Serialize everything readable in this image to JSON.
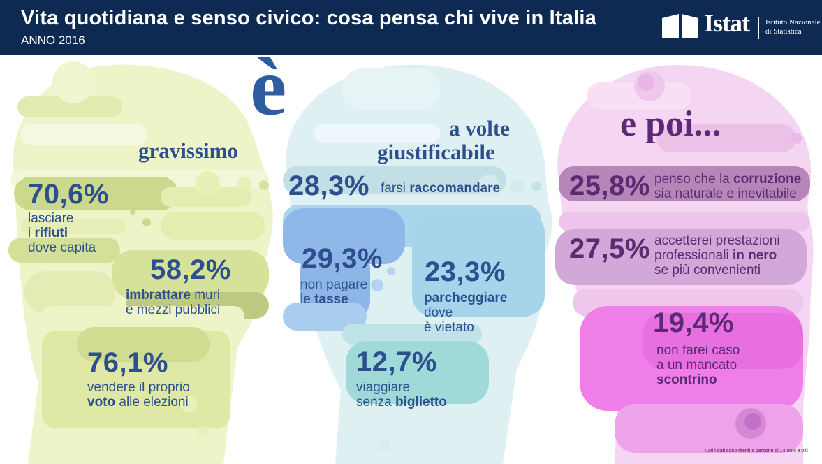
{
  "header": {
    "title": "Vita quotidiana e senso civico: cosa pensa chi vive in Italia",
    "subtitle": "ANNO 2016",
    "logo": {
      "word": "Istat",
      "line1": "Istituto Nazionale",
      "line2": "di Statistica"
    }
  },
  "big_letter": "è",
  "columns": [
    {
      "heading": "gravissimo",
      "items": [
        {
          "pct": "70,6%",
          "lines": [
            [
              {
                "t": "lasciare",
                "b": false
              }
            ],
            [
              {
                "t": "i ",
                "b": false
              },
              {
                "t": "rifiuti",
                "b": true
              }
            ],
            [
              {
                "t": "dove capita",
                "b": false
              }
            ]
          ]
        },
        {
          "pct": "58,2%",
          "lines": [
            [
              {
                "t": "imbrattare",
                "b": true
              },
              {
                "t": " muri",
                "b": false
              }
            ],
            [
              {
                "t": "e mezzi pubblici",
                "b": false
              }
            ]
          ]
        },
        {
          "pct": "76,1%",
          "lines": [
            [
              {
                "t": "vendere il proprio",
                "b": false
              }
            ],
            [
              {
                "t": "voto",
                "b": true
              },
              {
                "t": " alle elezioni",
                "b": false
              }
            ]
          ]
        }
      ]
    },
    {
      "heading_line1": "a volte",
      "heading_line2": "giustificabile",
      "items": [
        {
          "pct": "28,3%",
          "lines": [
            [
              {
                "t": "farsi ",
                "b": false
              },
              {
                "t": "raccomandare",
                "b": true
              }
            ]
          ]
        },
        {
          "pct": "29,3%",
          "lines": [
            [
              {
                "t": "non pagare",
                "b": false
              }
            ],
            [
              {
                "t": "le ",
                "b": false
              },
              {
                "t": "tasse",
                "b": true
              }
            ]
          ]
        },
        {
          "pct": "23,3%",
          "lines": [
            [
              {
                "t": "parcheggiare",
                "b": true
              }
            ],
            [
              {
                "t": "dove",
                "b": false
              }
            ],
            [
              {
                "t": "è vietato",
                "b": false
              }
            ]
          ]
        },
        {
          "pct": "12,7%",
          "lines": [
            [
              {
                "t": "viaggiare",
                "b": false
              }
            ],
            [
              {
                "t": "senza ",
                "b": false
              },
              {
                "t": "biglietto",
                "b": true
              }
            ]
          ]
        }
      ]
    },
    {
      "heading": "e poi...",
      "items": [
        {
          "pct": "25,8%",
          "lines": [
            [
              {
                "t": "penso che la ",
                "b": false
              },
              {
                "t": "corruzione",
                "b": true
              }
            ],
            [
              {
                "t": "sia naturale e inevitabile",
                "b": false
              }
            ]
          ]
        },
        {
          "pct": "27,5%",
          "lines": [
            [
              {
                "t": "accetterei prestazioni",
                "b": false
              }
            ],
            [
              {
                "t": "professionali ",
                "b": false
              },
              {
                "t": "in nero",
                "b": true
              }
            ],
            [
              {
                "t": "se più convenienti",
                "b": false
              }
            ]
          ]
        },
        {
          "pct": "19,4%",
          "lines": [
            [
              {
                "t": "non farei caso",
                "b": false
              }
            ],
            [
              {
                "t": "a un mancato",
                "b": false
              }
            ],
            [
              {
                "t": "scontrino",
                "b": true
              }
            ]
          ]
        }
      ]
    }
  ],
  "footnote": "Tutti i dati sono riferiti a persone di 14 anni e più",
  "colors": {
    "header_bg": "#0f2a52",
    "green_light": "#eef3c8",
    "green_mid": "#d6e29a",
    "green_dark": "#b8c87a",
    "blue_light": "#dff0f3",
    "blue_mid": "#a9d6ea",
    "blue_dark": "#8fb8e8",
    "teal": "#9fdad8",
    "pink_light": "#f5d6f2",
    "purple_mid": "#d2a8d8",
    "magenta": "#ef7ee8",
    "text_blue": "#2e4f8e",
    "text_purple": "#5a2a72"
  }
}
